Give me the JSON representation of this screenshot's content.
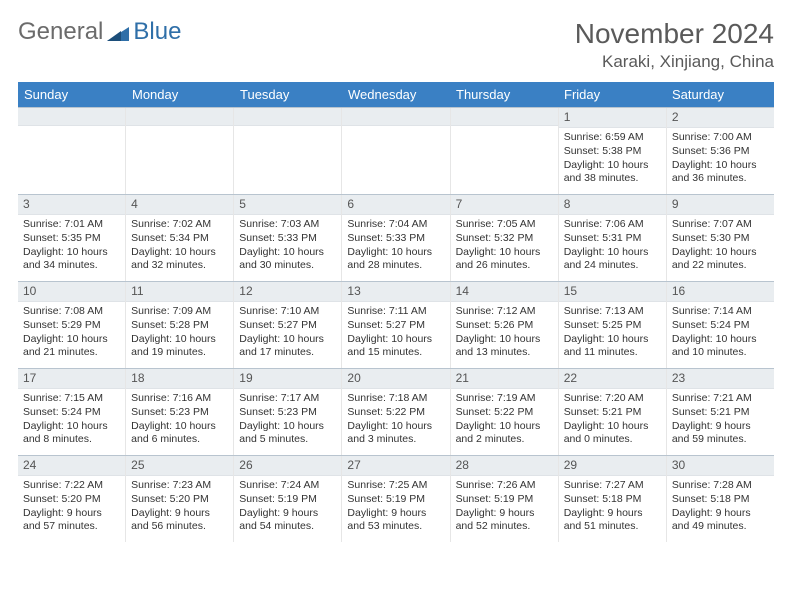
{
  "logo": {
    "part1": "General",
    "part2": "Blue"
  },
  "header": {
    "title": "November 2024",
    "location": "Karaki, Xinjiang, China"
  },
  "colors": {
    "header_bg": "#3a80c4",
    "header_text": "#ffffff",
    "daybar_bg": "#e9edf0",
    "border": "#b8c4cf",
    "logo_gray": "#6b6b6b",
    "logo_blue": "#2f6fa8"
  },
  "weekdays": [
    "Sunday",
    "Monday",
    "Tuesday",
    "Wednesday",
    "Thursday",
    "Friday",
    "Saturday"
  ],
  "weeks": [
    [
      {
        "n": "",
        "sr": "",
        "ss": "",
        "dl": ""
      },
      {
        "n": "",
        "sr": "",
        "ss": "",
        "dl": ""
      },
      {
        "n": "",
        "sr": "",
        "ss": "",
        "dl": ""
      },
      {
        "n": "",
        "sr": "",
        "ss": "",
        "dl": ""
      },
      {
        "n": "",
        "sr": "",
        "ss": "",
        "dl": ""
      },
      {
        "n": "1",
        "sr": "Sunrise: 6:59 AM",
        "ss": "Sunset: 5:38 PM",
        "dl": "Daylight: 10 hours and 38 minutes."
      },
      {
        "n": "2",
        "sr": "Sunrise: 7:00 AM",
        "ss": "Sunset: 5:36 PM",
        "dl": "Daylight: 10 hours and 36 minutes."
      }
    ],
    [
      {
        "n": "3",
        "sr": "Sunrise: 7:01 AM",
        "ss": "Sunset: 5:35 PM",
        "dl": "Daylight: 10 hours and 34 minutes."
      },
      {
        "n": "4",
        "sr": "Sunrise: 7:02 AM",
        "ss": "Sunset: 5:34 PM",
        "dl": "Daylight: 10 hours and 32 minutes."
      },
      {
        "n": "5",
        "sr": "Sunrise: 7:03 AM",
        "ss": "Sunset: 5:33 PM",
        "dl": "Daylight: 10 hours and 30 minutes."
      },
      {
        "n": "6",
        "sr": "Sunrise: 7:04 AM",
        "ss": "Sunset: 5:33 PM",
        "dl": "Daylight: 10 hours and 28 minutes."
      },
      {
        "n": "7",
        "sr": "Sunrise: 7:05 AM",
        "ss": "Sunset: 5:32 PM",
        "dl": "Daylight: 10 hours and 26 minutes."
      },
      {
        "n": "8",
        "sr": "Sunrise: 7:06 AM",
        "ss": "Sunset: 5:31 PM",
        "dl": "Daylight: 10 hours and 24 minutes."
      },
      {
        "n": "9",
        "sr": "Sunrise: 7:07 AM",
        "ss": "Sunset: 5:30 PM",
        "dl": "Daylight: 10 hours and 22 minutes."
      }
    ],
    [
      {
        "n": "10",
        "sr": "Sunrise: 7:08 AM",
        "ss": "Sunset: 5:29 PM",
        "dl": "Daylight: 10 hours and 21 minutes."
      },
      {
        "n": "11",
        "sr": "Sunrise: 7:09 AM",
        "ss": "Sunset: 5:28 PM",
        "dl": "Daylight: 10 hours and 19 minutes."
      },
      {
        "n": "12",
        "sr": "Sunrise: 7:10 AM",
        "ss": "Sunset: 5:27 PM",
        "dl": "Daylight: 10 hours and 17 minutes."
      },
      {
        "n": "13",
        "sr": "Sunrise: 7:11 AM",
        "ss": "Sunset: 5:27 PM",
        "dl": "Daylight: 10 hours and 15 minutes."
      },
      {
        "n": "14",
        "sr": "Sunrise: 7:12 AM",
        "ss": "Sunset: 5:26 PM",
        "dl": "Daylight: 10 hours and 13 minutes."
      },
      {
        "n": "15",
        "sr": "Sunrise: 7:13 AM",
        "ss": "Sunset: 5:25 PM",
        "dl": "Daylight: 10 hours and 11 minutes."
      },
      {
        "n": "16",
        "sr": "Sunrise: 7:14 AM",
        "ss": "Sunset: 5:24 PM",
        "dl": "Daylight: 10 hours and 10 minutes."
      }
    ],
    [
      {
        "n": "17",
        "sr": "Sunrise: 7:15 AM",
        "ss": "Sunset: 5:24 PM",
        "dl": "Daylight: 10 hours and 8 minutes."
      },
      {
        "n": "18",
        "sr": "Sunrise: 7:16 AM",
        "ss": "Sunset: 5:23 PM",
        "dl": "Daylight: 10 hours and 6 minutes."
      },
      {
        "n": "19",
        "sr": "Sunrise: 7:17 AM",
        "ss": "Sunset: 5:23 PM",
        "dl": "Daylight: 10 hours and 5 minutes."
      },
      {
        "n": "20",
        "sr": "Sunrise: 7:18 AM",
        "ss": "Sunset: 5:22 PM",
        "dl": "Daylight: 10 hours and 3 minutes."
      },
      {
        "n": "21",
        "sr": "Sunrise: 7:19 AM",
        "ss": "Sunset: 5:22 PM",
        "dl": "Daylight: 10 hours and 2 minutes."
      },
      {
        "n": "22",
        "sr": "Sunrise: 7:20 AM",
        "ss": "Sunset: 5:21 PM",
        "dl": "Daylight: 10 hours and 0 minutes."
      },
      {
        "n": "23",
        "sr": "Sunrise: 7:21 AM",
        "ss": "Sunset: 5:21 PM",
        "dl": "Daylight: 9 hours and 59 minutes."
      }
    ],
    [
      {
        "n": "24",
        "sr": "Sunrise: 7:22 AM",
        "ss": "Sunset: 5:20 PM",
        "dl": "Daylight: 9 hours and 57 minutes."
      },
      {
        "n": "25",
        "sr": "Sunrise: 7:23 AM",
        "ss": "Sunset: 5:20 PM",
        "dl": "Daylight: 9 hours and 56 minutes."
      },
      {
        "n": "26",
        "sr": "Sunrise: 7:24 AM",
        "ss": "Sunset: 5:19 PM",
        "dl": "Daylight: 9 hours and 54 minutes."
      },
      {
        "n": "27",
        "sr": "Sunrise: 7:25 AM",
        "ss": "Sunset: 5:19 PM",
        "dl": "Daylight: 9 hours and 53 minutes."
      },
      {
        "n": "28",
        "sr": "Sunrise: 7:26 AM",
        "ss": "Sunset: 5:19 PM",
        "dl": "Daylight: 9 hours and 52 minutes."
      },
      {
        "n": "29",
        "sr": "Sunrise: 7:27 AM",
        "ss": "Sunset: 5:18 PM",
        "dl": "Daylight: 9 hours and 51 minutes."
      },
      {
        "n": "30",
        "sr": "Sunrise: 7:28 AM",
        "ss": "Sunset: 5:18 PM",
        "dl": "Daylight: 9 hours and 49 minutes."
      }
    ]
  ]
}
